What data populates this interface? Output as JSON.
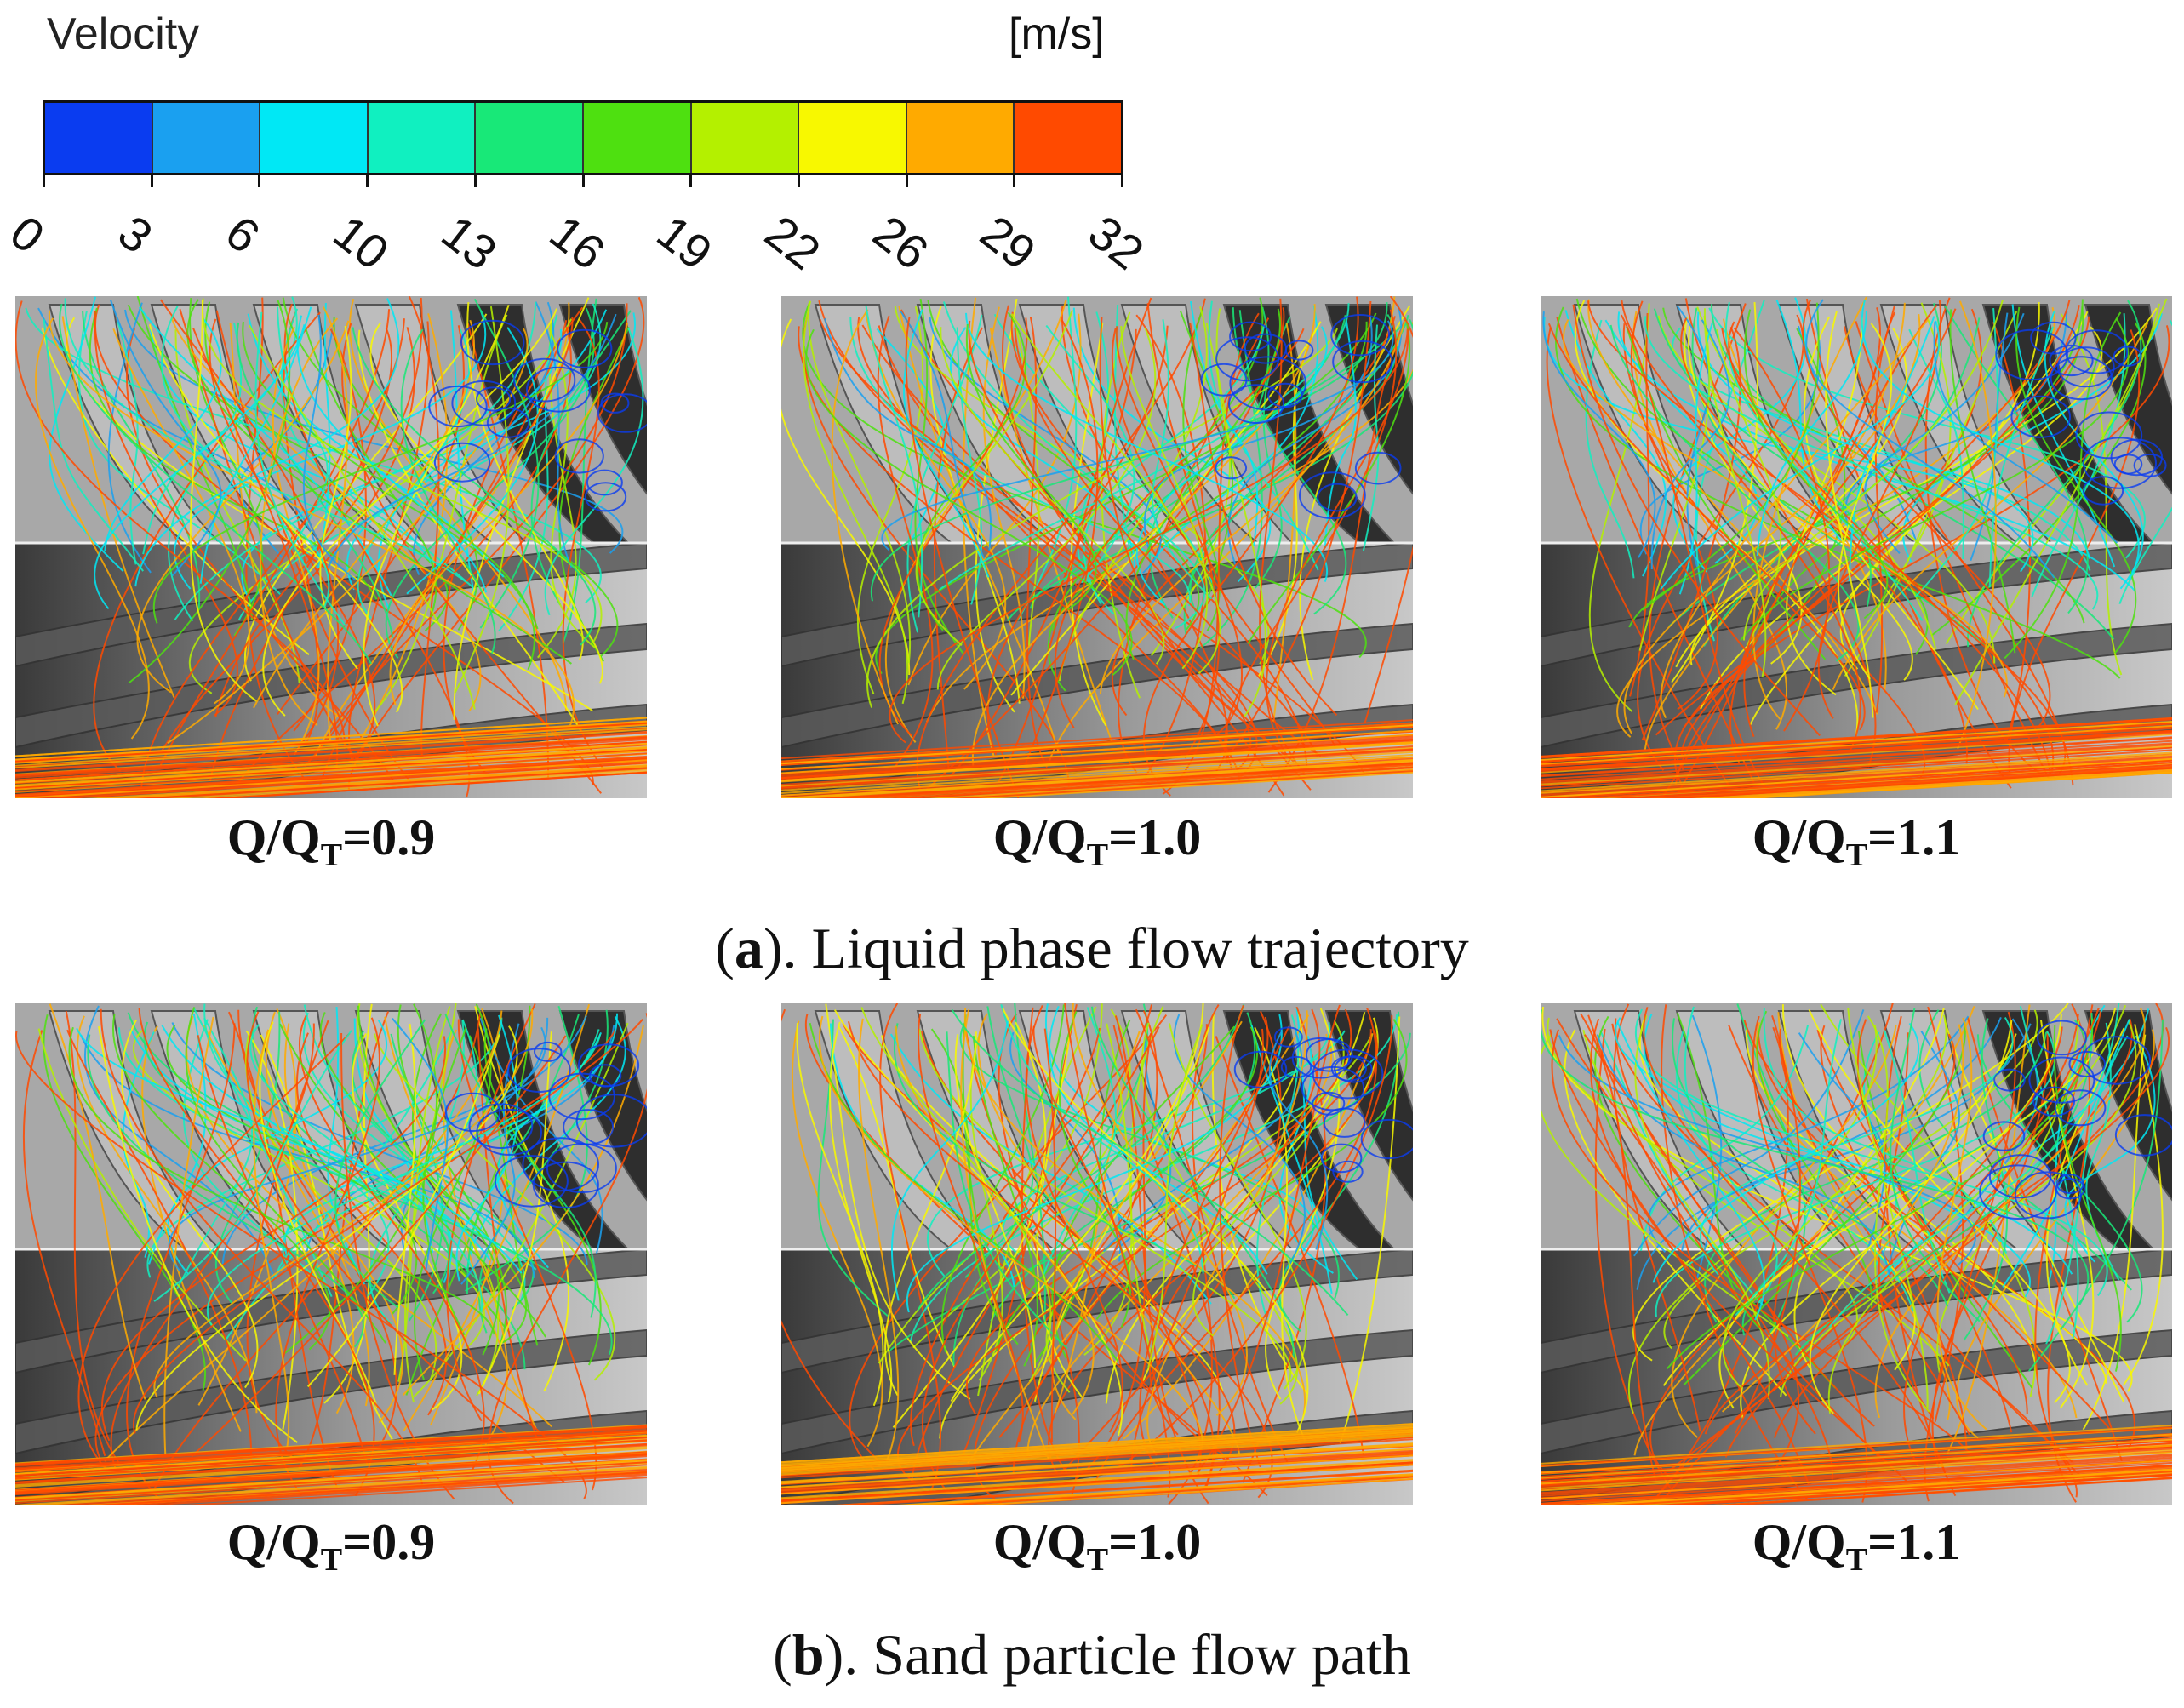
{
  "legend": {
    "title": "Velocity",
    "unit": "[m/s]",
    "ticks": [
      "0",
      "3",
      "6",
      "10",
      "13",
      "16",
      "19",
      "22",
      "26",
      "29",
      "32"
    ],
    "colors": [
      "#0a3cf0",
      "#1aa0f0",
      "#00e8f5",
      "#10f0c0",
      "#18e878",
      "#4ee010",
      "#b4f000",
      "#f8f800",
      "#ffaa00",
      "#ff4a00"
    ]
  },
  "rows": [
    {
      "caption_letter": "a",
      "caption_text": "). Liquid phase flow trajectory",
      "panels": [
        {
          "q_prefix": "Q/Q",
          "q_sub": "T",
          "q_value": "=0.9"
        },
        {
          "q_prefix": "Q/Q",
          "q_sub": "T",
          "q_value": "=1.0"
        },
        {
          "q_prefix": "Q/Q",
          "q_sub": "T",
          "q_value": "=1.1"
        }
      ]
    },
    {
      "caption_letter": "b",
      "caption_text": "). Sand particle flow path",
      "panels": [
        {
          "q_prefix": "Q/Q",
          "q_sub": "T",
          "q_value": "=0.9"
        },
        {
          "q_prefix": "Q/Q",
          "q_sub": "T",
          "q_value": "=1.0"
        },
        {
          "q_prefix": "Q/Q",
          "q_sub": "T",
          "q_value": "=1.1"
        }
      ]
    }
  ]
}
